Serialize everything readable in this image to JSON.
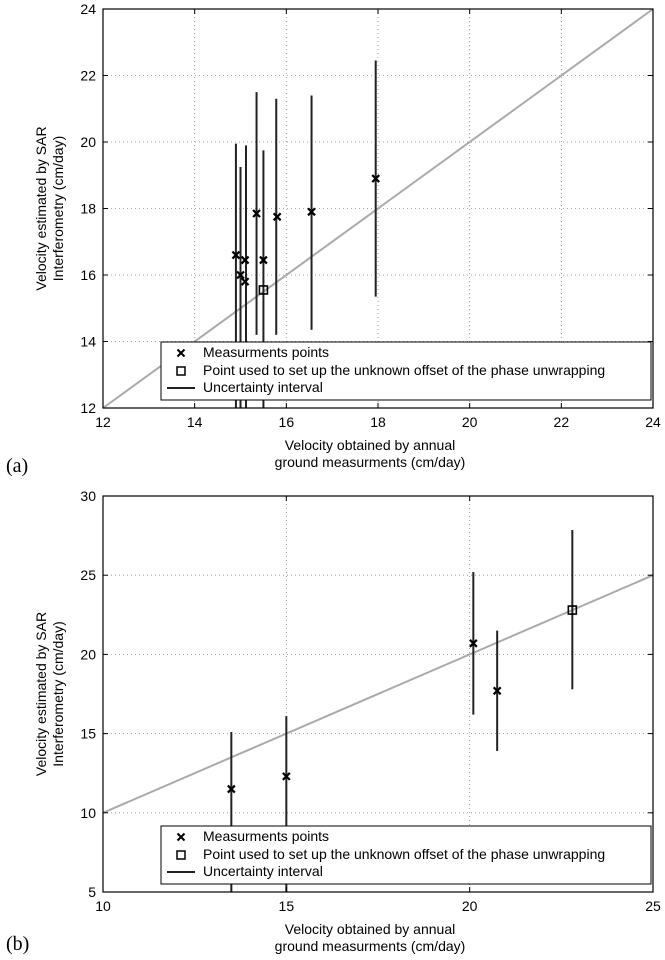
{
  "chart_data": [
    {
      "type": "scatter",
      "panel_label": "(a)",
      "xlabel": [
        "Velocity obtained by annual",
        "ground measurments (cm/day)"
      ],
      "ylabel": [
        "Velocity estimated by SAR",
        "Interferometry (cm/day)"
      ],
      "xlim": [
        12,
        24
      ],
      "ylim": [
        12,
        24
      ],
      "xticks": [
        12,
        14,
        16,
        18,
        20,
        22,
        24
      ],
      "yticks": [
        12,
        14,
        16,
        18,
        20,
        22,
        24
      ],
      "grid": true,
      "legend_position": "bottom",
      "reference_line": {
        "x": [
          12,
          24
        ],
        "y": [
          12,
          24
        ],
        "color": "#aaaaaa"
      },
      "series": [
        {
          "name": "Measurments points",
          "marker": "x",
          "points": [
            {
              "x": 14.9,
              "y": 16.6
            },
            {
              "x": 15.0,
              "y": 16.0
            },
            {
              "x": 15.1,
              "y": 16.45
            },
            {
              "x": 15.1,
              "y": 15.8
            },
            {
              "x": 15.35,
              "y": 17.85
            },
            {
              "x": 15.5,
              "y": 16.45
            },
            {
              "x": 15.8,
              "y": 17.75
            },
            {
              "x": 16.55,
              "y": 17.9
            },
            {
              "x": 17.95,
              "y": 18.9
            }
          ]
        },
        {
          "name": "Point used to set up the unknown offset of the phase unwrapping",
          "marker": "square",
          "points": [
            {
              "x": 15.5,
              "y": 15.55
            }
          ]
        },
        {
          "name": "Uncertainty interval",
          "marker": "line",
          "intervals": [
            {
              "x": 14.9,
              "low": 12,
              "high": 19.95
            },
            {
              "x": 15.0,
              "low": 12,
              "high": 19.25
            },
            {
              "x": 15.12,
              "low": 12,
              "high": 19.9
            },
            {
              "x": 15.35,
              "low": 14.2,
              "high": 21.5
            },
            {
              "x": 15.5,
              "low": 12,
              "high": 19.75
            },
            {
              "x": 15.78,
              "low": 14.2,
              "high": 21.3
            },
            {
              "x": 16.55,
              "low": 14.35,
              "high": 21.4
            },
            {
              "x": 17.95,
              "low": 15.35,
              "high": 22.45
            }
          ]
        }
      ]
    },
    {
      "type": "scatter",
      "panel_label": "(b)",
      "xlabel": [
        "Velocity obtained by annual",
        "ground measurments (cm/day)"
      ],
      "ylabel": [
        "Velocity estimated by SAR",
        "Interferometry (cm/day)"
      ],
      "xlim": [
        10,
        25
      ],
      "ylim": [
        5,
        30
      ],
      "xticks": [
        10,
        15,
        20,
        25
      ],
      "yticks": [
        5,
        10,
        15,
        20,
        25,
        30
      ],
      "grid": true,
      "legend_position": "bottom",
      "reference_line": {
        "x": [
          10,
          25
        ],
        "y": [
          10,
          25
        ],
        "color": "#aaaaaa"
      },
      "series": [
        {
          "name": "Measurments points",
          "marker": "x",
          "points": [
            {
              "x": 13.5,
              "y": 11.5
            },
            {
              "x": 15.0,
              "y": 12.3
            },
            {
              "x": 20.1,
              "y": 20.7
            },
            {
              "x": 20.75,
              "y": 17.7
            }
          ]
        },
        {
          "name": "Point used to set up the unknown offset of the phase unwrapping",
          "marker": "square",
          "points": [
            {
              "x": 22.8,
              "y": 22.8
            }
          ]
        },
        {
          "name": "Uncertainty interval",
          "marker": "line",
          "intervals": [
            {
              "x": 13.5,
              "low": 5,
              "high": 15.1
            },
            {
              "x": 15.0,
              "low": 5,
              "high": 16.1
            },
            {
              "x": 20.1,
              "low": 16.2,
              "high": 25.2
            },
            {
              "x": 20.75,
              "low": 13.9,
              "high": 21.5
            },
            {
              "x": 22.8,
              "low": 17.8,
              "high": 27.85
            }
          ]
        }
      ]
    }
  ]
}
